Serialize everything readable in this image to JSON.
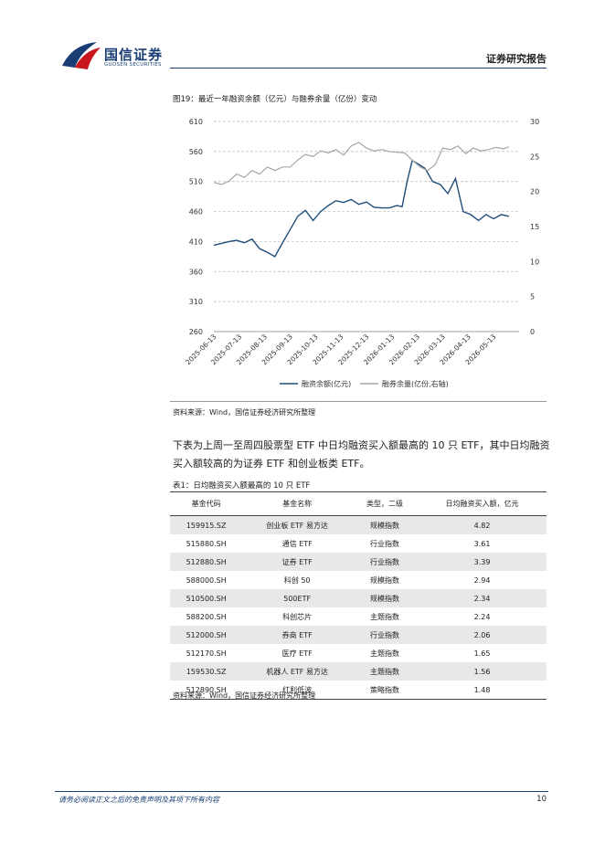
{
  "header": {
    "brand_name": "国信证券",
    "brand_sub": "GUOSEN SECURITIES",
    "report_type": "证券研究报告"
  },
  "figure": {
    "title": "图19：最近一年融资余额（亿元）与融券余量（亿份）变动",
    "source": "资料来源：Wind，国信证券经济研究所整理"
  },
  "chart_data": {
    "type": "line",
    "left_axis": {
      "min": 260,
      "max": 610,
      "ticks": [
        "260",
        "310",
        "360",
        "410",
        "460",
        "510",
        "560",
        "610"
      ]
    },
    "right_axis": {
      "min": 0,
      "max": 30,
      "ticks": [
        "0",
        "5",
        "10",
        "15",
        "20",
        "25",
        "30"
      ]
    },
    "x_ticks": [
      "2025-06-13",
      "2025-07-13",
      "2025-08-13",
      "2025-09-13",
      "2025-10-13",
      "2025-11-13",
      "2025-12-13",
      "2026-01-13",
      "2026-02-13",
      "2026-03-13",
      "2026-04-13",
      "2026-05-13"
    ],
    "x_range": [
      0,
      12
    ],
    "grid": true,
    "legend_position": "bottom",
    "series": [
      {
        "name": "融资余额(亿元)",
        "axis": "left",
        "color": "#1f4e79",
        "x": [
          0,
          0.3,
          0.6,
          0.9,
          1.2,
          1.5,
          1.8,
          2.1,
          2.4,
          2.7,
          3.0,
          3.3,
          3.6,
          3.9,
          4.2,
          4.5,
          4.8,
          5.1,
          5.4,
          5.7,
          6.0,
          6.3,
          6.6,
          6.9,
          7.2,
          7.4,
          7.6,
          7.8,
          8.0,
          8.3,
          8.6,
          8.9,
          9.2,
          9.5,
          9.8,
          10.1,
          10.4,
          10.7,
          11.0,
          11.3,
          11.6
        ],
        "values": [
          404,
          407,
          410,
          412,
          408,
          414,
          398,
          392,
          385,
          408,
          430,
          452,
          462,
          445,
          460,
          470,
          478,
          475,
          480,
          472,
          476,
          467,
          466,
          466,
          470,
          468,
          510,
          545,
          540,
          532,
          510,
          505,
          490,
          515,
          460,
          455,
          445,
          455,
          448,
          455,
          452
        ]
      },
      {
        "name": "融券余量(亿份,右轴)",
        "axis": "right",
        "color": "#a6a6a6",
        "x": [
          0,
          0.3,
          0.6,
          0.9,
          1.2,
          1.5,
          1.8,
          2.1,
          2.4,
          2.7,
          3.0,
          3.3,
          3.6,
          3.9,
          4.2,
          4.5,
          4.8,
          5.1,
          5.4,
          5.7,
          6.0,
          6.3,
          6.6,
          6.9,
          7.2,
          7.5,
          7.8,
          8.1,
          8.4,
          8.7,
          9.0,
          9.3,
          9.6,
          9.9,
          10.2,
          10.5,
          10.8,
          11.1,
          11.4,
          11.6
        ],
        "values": [
          21.3,
          21.0,
          21.5,
          22.5,
          22.0,
          23.0,
          22.5,
          23.5,
          23.0,
          23.5,
          23.5,
          24.5,
          25.3,
          25.0,
          25.8,
          25.5,
          26.0,
          25.2,
          26.5,
          27.0,
          26.2,
          25.8,
          26.0,
          25.7,
          25.6,
          25.5,
          24.5,
          23.5,
          23.0,
          23.8,
          26.2,
          26.0,
          26.5,
          25.4,
          26.2,
          25.8,
          26.0,
          26.3,
          26.1,
          26.4
        ]
      }
    ]
  },
  "paragraph": "下表为上周一至周四股票型 ETF 中日均融资买入额最高的 10 只 ETF，其中日均融资买入额较高的为证券 ETF 和创业板类 ETF。",
  "table": {
    "title": "表1：日均融资买入额最高的 10 只 ETF",
    "headers": [
      "基金代码",
      "基金名称",
      "类型，二级",
      "日均融资买入额，亿元"
    ],
    "rows": [
      [
        "159915.SZ",
        "创业板 ETF 易方达",
        "规模指数",
        "4.82"
      ],
      [
        "515880.SH",
        "通信 ETF",
        "行业指数",
        "3.61"
      ],
      [
        "512880.SH",
        "证券 ETF",
        "行业指数",
        "3.39"
      ],
      [
        "588000.SH",
        "科创 50",
        "规模指数",
        "2.94"
      ],
      [
        "510500.SH",
        "500ETF",
        "规模指数",
        "2.34"
      ],
      [
        "588200.SH",
        "科创芯片",
        "主题指数",
        "2.24"
      ],
      [
        "512000.SH",
        "券商 ETF",
        "行业指数",
        "2.06"
      ],
      [
        "512170.SH",
        "医疗 ETF",
        "主题指数",
        "1.65"
      ],
      [
        "159530.SZ",
        "机器人 ETF 易方达",
        "主题指数",
        "1.56"
      ],
      [
        "512890.SH",
        "红利低波",
        "策略指数",
        "1.48"
      ]
    ],
    "source": "资料来源：Wind，国信证券经济研究所整理"
  },
  "footer": {
    "disclaimer": "请务必阅读正文之后的免责声明及其项下所有内容",
    "page_number": "10"
  }
}
